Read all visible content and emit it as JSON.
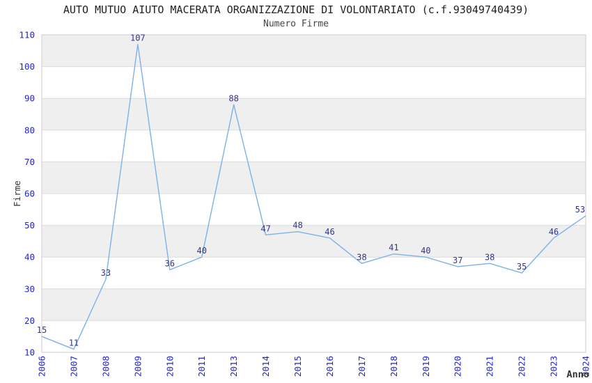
{
  "chart_data": {
    "type": "line",
    "title": "AUTO MUTUO AIUTO MACERATA ORGANIZZAZIONE DI VOLONTARIATO (c.f.93049740439)",
    "subtitle": "Numero Firme",
    "xlabel": "Anno",
    "ylabel": "Firme",
    "categories": [
      "2006",
      "2007",
      "2008",
      "2009",
      "2010",
      "2011",
      "2013",
      "2014",
      "2015",
      "2016",
      "2017",
      "2018",
      "2019",
      "2020",
      "2021",
      "2022",
      "2023",
      "2024"
    ],
    "values": [
      15,
      11,
      33,
      107,
      36,
      40,
      88,
      47,
      48,
      46,
      38,
      41,
      40,
      37,
      38,
      35,
      46,
      53
    ],
    "ylim": [
      10,
      110
    ],
    "yticks": [
      10,
      20,
      30,
      40,
      50,
      60,
      70,
      80,
      90,
      100,
      110
    ],
    "grid": "alternating-horizontal-bands",
    "legend_position": "none",
    "data_labels_visible": true,
    "markers_visible": false,
    "x_tick_rotation_deg": 90,
    "colors": {
      "line": "#7db1e8",
      "tick_label": "#2323cc",
      "data_label": "#333388",
      "band_fill": "#efefef",
      "gridline": "#dcdcdc",
      "plot_border": "#cccccc",
      "title": "#222222",
      "subtitle": "#454545",
      "axis_title": "#333333",
      "background": "#ffffff"
    }
  }
}
